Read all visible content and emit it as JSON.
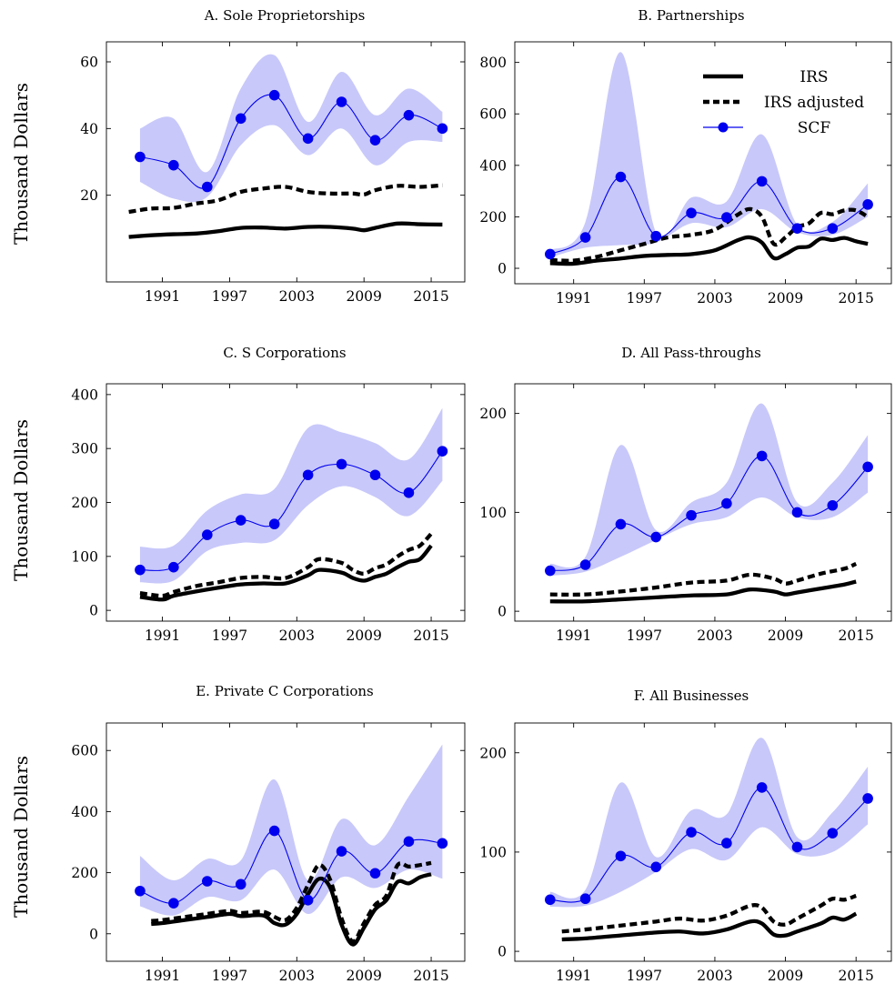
{
  "ylabel": "Thousand Dollars",
  "colors": {
    "irs": "#000000",
    "scf_line": "#0000ee",
    "band": "#c8c8fa"
  },
  "legend": [
    {
      "key": "irs",
      "label": "IRS"
    },
    {
      "key": "irs_adj",
      "label": "IRS adjusted"
    },
    {
      "key": "scf",
      "label": "SCF"
    }
  ],
  "chart_data": [
    {
      "type": "line",
      "title": "A. Sole Proprietorships",
      "xlim": [
        1986,
        2018
      ],
      "ylim": [
        -6,
        66
      ],
      "xticks": [
        1991,
        1997,
        2003,
        2009,
        2015
      ],
      "yticks": [
        20,
        40,
        60
      ],
      "series": [
        {
          "key": "irs",
          "name": "IRS",
          "x": [
            1988,
            1990,
            1992,
            1994,
            1996,
            1998,
            2000,
            2002,
            2004,
            2006,
            2008,
            2009,
            2010,
            2012,
            2014,
            2016
          ],
          "y": [
            7.5,
            8,
            8.3,
            8.5,
            9.2,
            10.2,
            10.3,
            10,
            10.5,
            10.5,
            10,
            9.5,
            10.2,
            11.5,
            11.3,
            11.2
          ]
        },
        {
          "key": "irs_adj",
          "name": "IRS adjusted",
          "x": [
            1988,
            1990,
            1992,
            1994,
            1996,
            1998,
            2000,
            2002,
            2004,
            2006,
            2008,
            2009,
            2010,
            2012,
            2014,
            2016
          ],
          "y": [
            15,
            16,
            16.2,
            17.5,
            18.5,
            21,
            22,
            22.5,
            21,
            20.5,
            20.5,
            20.2,
            21.5,
            22.8,
            22.5,
            23
          ]
        },
        {
          "key": "scf",
          "name": "SCF",
          "x": [
            1989,
            1992,
            1995,
            1998,
            2001,
            2004,
            2007,
            2010,
            2013,
            2016
          ],
          "y": [
            31.5,
            29,
            22.5,
            43,
            50,
            37,
            48,
            36.5,
            44,
            40
          ]
        },
        {
          "key": "scf_upper",
          "x": [
            1989,
            1992,
            1995,
            1998,
            2001,
            2004,
            2007,
            2010,
            2013,
            2016
          ],
          "y": [
            40,
            43,
            27,
            52,
            62,
            42,
            57,
            44,
            52,
            45
          ]
        },
        {
          "key": "scf_lower",
          "x": [
            1989,
            1992,
            1995,
            1998,
            2001,
            2004,
            2007,
            2010,
            2013,
            2016
          ],
          "y": [
            24,
            19,
            19.5,
            35,
            41,
            32,
            40,
            29,
            36,
            36
          ]
        }
      ]
    },
    {
      "type": "line",
      "title": "B. Partnerships",
      "xlim": [
        1986,
        2018
      ],
      "ylim": [
        -60,
        880
      ],
      "xticks": [
        1991,
        1997,
        2003,
        2009,
        2015
      ],
      "yticks": [
        0,
        200,
        400,
        600,
        800
      ],
      "series": [
        {
          "key": "irs",
          "name": "IRS",
          "x": [
            1989,
            1991,
            1993,
            1995,
            1997,
            1999,
            2001,
            2003,
            2005,
            2006,
            2007,
            2008,
            2009,
            2010,
            2011,
            2012,
            2013,
            2014,
            2015,
            2016
          ],
          "y": [
            20,
            18,
            30,
            38,
            48,
            52,
            55,
            70,
            110,
            120,
            100,
            40,
            55,
            80,
            85,
            115,
            110,
            118,
            105,
            95
          ]
        },
        {
          "key": "irs_adj",
          "name": "IRS adjusted",
          "x": [
            1989,
            1991,
            1993,
            1995,
            1997,
            1999,
            2001,
            2003,
            2005,
            2006,
            2007,
            2008,
            2009,
            2010,
            2011,
            2012,
            2013,
            2014,
            2015,
            2016
          ],
          "y": [
            32,
            30,
            45,
            70,
            95,
            120,
            130,
            150,
            210,
            230,
            200,
            95,
            120,
            160,
            175,
            215,
            210,
            225,
            225,
            200
          ]
        },
        {
          "key": "scf",
          "name": "SCF",
          "x": [
            1989,
            1992,
            1995,
            1998,
            2001,
            2004,
            2007,
            2010,
            2013,
            2016
          ],
          "y": [
            55,
            120,
            355,
            125,
            215,
            198,
            338,
            155,
            155,
            248
          ]
        },
        {
          "key": "scf_upper",
          "x": [
            1989,
            1992,
            1995,
            1998,
            2001,
            2004,
            2007,
            2010,
            2013,
            2016
          ],
          "y": [
            70,
            180,
            840,
            140,
            275,
            260,
            520,
            170,
            180,
            330
          ]
        },
        {
          "key": "scf_lower",
          "x": [
            1989,
            1992,
            1995,
            1998,
            2001,
            2004,
            2007,
            2010,
            2013,
            2016
          ],
          "y": [
            42,
            80,
            90,
            100,
            175,
            160,
            230,
            140,
            130,
            200
          ]
        }
      ]
    },
    {
      "type": "line",
      "title": "C. S Corporations",
      "xlim": [
        1986,
        2018
      ],
      "ylim": [
        -20,
        420
      ],
      "xticks": [
        1991,
        1997,
        2003,
        2009,
        2015
      ],
      "yticks": [
        0,
        100,
        200,
        300,
        400
      ],
      "series": [
        {
          "key": "irs",
          "name": "IRS",
          "x": [
            1989,
            1991,
            1992,
            1994,
            1996,
            1998,
            2000,
            2002,
            2004,
            2005,
            2007,
            2008,
            2009,
            2010,
            2011,
            2012,
            2013,
            2014,
            2015
          ],
          "y": [
            25,
            20,
            27,
            35,
            42,
            48,
            50,
            50,
            65,
            75,
            70,
            60,
            55,
            62,
            68,
            80,
            90,
            95,
            120
          ]
        },
        {
          "key": "irs_adj",
          "name": "IRS adjusted",
          "x": [
            1989,
            1991,
            1992,
            1994,
            1996,
            1998,
            2000,
            2002,
            2004,
            2005,
            2007,
            2008,
            2009,
            2010,
            2011,
            2012,
            2013,
            2014,
            2015
          ],
          "y": [
            32,
            27,
            34,
            45,
            52,
            60,
            62,
            60,
            80,
            95,
            88,
            75,
            68,
            78,
            85,
            100,
            112,
            120,
            142
          ]
        },
        {
          "key": "scf",
          "name": "SCF",
          "x": [
            1989,
            1992,
            1995,
            1998,
            2001,
            2004,
            2007,
            2010,
            2013,
            2016
          ],
          "y": [
            75,
            80,
            140,
            167,
            160,
            251,
            271,
            251,
            218,
            295
          ]
        },
        {
          "key": "scf_upper",
          "x": [
            1989,
            1992,
            1995,
            1998,
            2001,
            2004,
            2007,
            2010,
            2013,
            2016
          ],
          "y": [
            118,
            120,
            185,
            215,
            225,
            338,
            330,
            310,
            280,
            375
          ]
        },
        {
          "key": "scf_lower",
          "x": [
            1989,
            1992,
            1995,
            1998,
            2001,
            2004,
            2007,
            2010,
            2013,
            2016
          ],
          "y": [
            52,
            55,
            110,
            125,
            130,
            195,
            230,
            210,
            175,
            240
          ]
        }
      ]
    },
    {
      "type": "line",
      "title": "D. All Pass-throughs",
      "xlim": [
        1986,
        2018
      ],
      "ylim": [
        -10,
        230
      ],
      "xticks": [
        1991,
        1997,
        2003,
        2009,
        2015
      ],
      "yticks": [
        0,
        100,
        200
      ],
      "series": [
        {
          "key": "irs",
          "name": "IRS",
          "x": [
            1989,
            1992,
            1995,
            1998,
            2001,
            2004,
            2006,
            2008,
            2009,
            2010,
            2012,
            2014,
            2015
          ],
          "y": [
            10,
            10,
            12,
            14,
            16,
            17,
            22,
            20,
            17,
            19,
            23,
            27,
            30
          ]
        },
        {
          "key": "irs_adj",
          "name": "IRS adjusted",
          "x": [
            1989,
            1992,
            1995,
            1998,
            2001,
            2004,
            2006,
            2008,
            2009,
            2010,
            2012,
            2014,
            2015
          ],
          "y": [
            17,
            17,
            20,
            24,
            29,
            31,
            37,
            33,
            28,
            31,
            38,
            43,
            48
          ]
        },
        {
          "key": "scf",
          "name": "SCF",
          "x": [
            1989,
            1992,
            1995,
            1998,
            2001,
            2004,
            2007,
            2010,
            2013,
            2016
          ],
          "y": [
            41,
            47,
            88,
            75,
            97,
            109,
            157,
            100,
            107,
            146
          ]
        },
        {
          "key": "scf_upper",
          "x": [
            1989,
            1992,
            1995,
            1998,
            2001,
            2004,
            2007,
            2010,
            2013,
            2016
          ],
          "y": [
            48,
            55,
            168,
            82,
            110,
            130,
            210,
            110,
            130,
            178
          ]
        },
        {
          "key": "scf_lower",
          "x": [
            1989,
            1992,
            1995,
            1998,
            2001,
            2004,
            2007,
            2010,
            2013,
            2016
          ],
          "y": [
            36,
            40,
            55,
            72,
            88,
            95,
            115,
            95,
            95,
            120
          ]
        }
      ]
    },
    {
      "type": "line",
      "title": "E. Private C Corporations",
      "xlim": [
        1986,
        2018
      ],
      "ylim": [
        -90,
        690
      ],
      "xticks": [
        1991,
        1997,
        2003,
        2009,
        2015
      ],
      "yticks": [
        0,
        200,
        400,
        600
      ],
      "series": [
        {
          "key": "irs",
          "name": "IRS",
          "x": [
            1990,
            1991,
            1993,
            1995,
            1997,
            1998,
            2000,
            2001,
            2002,
            2003,
            2004,
            2005,
            2006,
            2007,
            2008,
            2009,
            2010,
            2011,
            2012,
            2013,
            2014,
            2015
          ],
          "y": [
            32,
            35,
            45,
            55,
            65,
            58,
            60,
            35,
            30,
            65,
            130,
            180,
            150,
            30,
            -35,
            20,
            80,
            110,
            170,
            165,
            185,
            195
          ]
        },
        {
          "key": "irs_adj",
          "name": "IRS adjusted",
          "x": [
            1990,
            1991,
            1993,
            1995,
            1997,
            1998,
            2000,
            2001,
            2002,
            2003,
            2004,
            2005,
            2006,
            2007,
            2008,
            2009,
            2010,
            2011,
            2012,
            2013,
            2014,
            2015
          ],
          "y": [
            42,
            45,
            55,
            65,
            75,
            68,
            72,
            55,
            45,
            85,
            160,
            225,
            175,
            50,
            -25,
            35,
            95,
            125,
            225,
            220,
            225,
            232
          ]
        },
        {
          "key": "scf",
          "name": "SCF",
          "x": [
            1989,
            1992,
            1995,
            1998,
            2001,
            2004,
            2007,
            2010,
            2013,
            2016
          ],
          "y": [
            140,
            100,
            172,
            162,
            337,
            110,
            270,
            198,
            302,
            296
          ]
        },
        {
          "key": "scf_upper",
          "x": [
            1989,
            1992,
            1995,
            1998,
            2001,
            2004,
            2007,
            2010,
            2013,
            2016
          ],
          "y": [
            255,
            175,
            245,
            240,
            505,
            175,
            375,
            290,
            450,
            620
          ]
        },
        {
          "key": "scf_lower",
          "x": [
            1989,
            1992,
            1995,
            1998,
            2001,
            2004,
            2007,
            2010,
            2013,
            2016
          ],
          "y": [
            90,
            60,
            120,
            110,
            210,
            65,
            185,
            150,
            210,
            180
          ]
        }
      ]
    },
    {
      "type": "line",
      "title": "F. All Businesses",
      "xlim": [
        1986,
        2018
      ],
      "ylim": [
        -10,
        230
      ],
      "xticks": [
        1991,
        1997,
        2003,
        2009,
        2015
      ],
      "yticks": [
        0,
        100,
        200
      ],
      "series": [
        {
          "key": "irs",
          "name": "IRS",
          "x": [
            1990,
            1992,
            1995,
            1998,
            2000,
            2002,
            2004,
            2006,
            2007,
            2008,
            2009,
            2010,
            2012,
            2013,
            2014,
            2015
          ],
          "y": [
            12,
            13,
            16,
            19,
            20,
            18,
            22,
            30,
            28,
            17,
            16,
            20,
            28,
            34,
            32,
            38
          ]
        },
        {
          "key": "irs_adj",
          "name": "IRS adjusted",
          "x": [
            1990,
            1992,
            1995,
            1998,
            2000,
            2002,
            2004,
            2006,
            2007,
            2008,
            2009,
            2010,
            2012,
            2013,
            2014,
            2015
          ],
          "y": [
            20,
            22,
            26,
            30,
            33,
            31,
            36,
            46,
            44,
            30,
            27,
            33,
            46,
            53,
            52,
            56
          ]
        },
        {
          "key": "scf",
          "name": "SCF",
          "x": [
            1989,
            1992,
            1995,
            1998,
            2001,
            2004,
            2007,
            2010,
            2013,
            2016
          ],
          "y": [
            52,
            53,
            96,
            85,
            120,
            109,
            165,
            105,
            119,
            154
          ]
        },
        {
          "key": "scf_upper",
          "x": [
            1989,
            1992,
            1995,
            1998,
            2001,
            2004,
            2007,
            2010,
            2013,
            2016
          ],
          "y": [
            60,
            62,
            170,
            95,
            142,
            138,
            215,
            115,
            140,
            186
          ]
        },
        {
          "key": "scf_lower",
          "x": [
            1989,
            1992,
            1995,
            1998,
            2001,
            2004,
            2007,
            2010,
            2013,
            2016
          ],
          "y": [
            45,
            46,
            60,
            80,
            103,
            92,
            125,
            98,
            100,
            128
          ]
        }
      ]
    }
  ]
}
